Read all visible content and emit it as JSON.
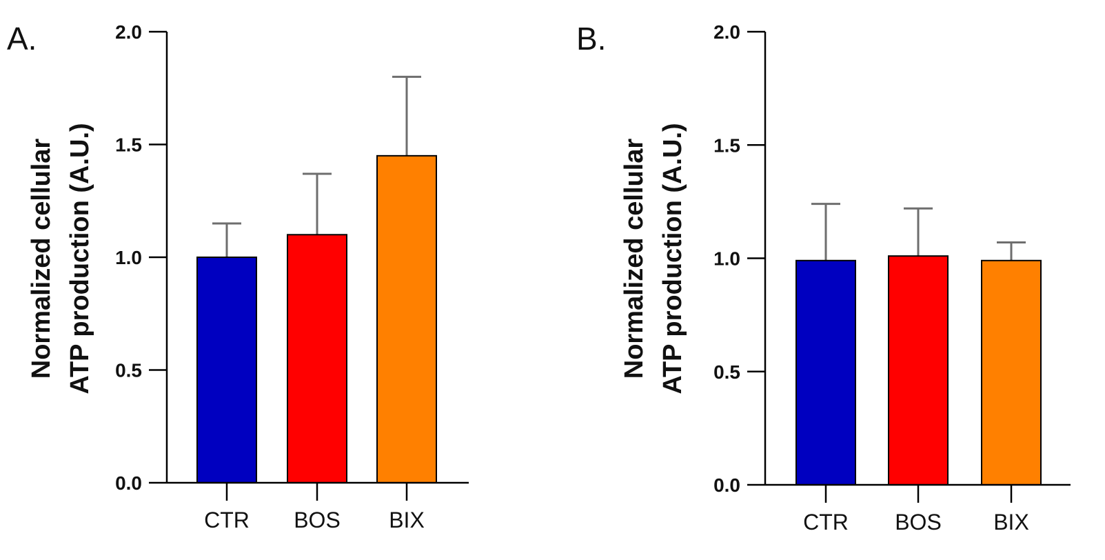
{
  "chart_data": [
    {
      "type": "bar",
      "panel_label": "A.",
      "categories": [
        "CTR",
        "BOS",
        "BIX"
      ],
      "values": [
        1.0,
        1.1,
        1.45
      ],
      "errors": [
        0.15,
        0.27,
        0.35
      ],
      "colors": [
        "#0000c0",
        "#ff0000",
        "#ff8000"
      ],
      "ylabel_line1": "Normalized cellular",
      "ylabel_line2": "ATP production  (A.U.)",
      "ylim": [
        0,
        2.0
      ],
      "yticks": [
        0.0,
        0.5,
        1.0,
        1.5,
        2.0
      ],
      "ytick_labels": [
        "0.0",
        "0.5",
        "1.0",
        "1.5",
        "2.0"
      ]
    },
    {
      "type": "bar",
      "panel_label": "B.",
      "categories": [
        "CTR",
        "BOS",
        "BIX"
      ],
      "values": [
        0.99,
        1.01,
        0.99
      ],
      "errors": [
        0.25,
        0.21,
        0.08
      ],
      "colors": [
        "#0000c0",
        "#ff0000",
        "#ff8000"
      ],
      "ylabel_line1": "Normalized cellular",
      "ylabel_line2": "ATP production  (A.U.)",
      "ylim": [
        0,
        2.0
      ],
      "yticks": [
        0.0,
        0.5,
        1.0,
        1.5,
        2.0
      ],
      "ytick_labels": [
        "0.0",
        "0.5",
        "1.0",
        "1.5",
        "2.0"
      ]
    }
  ]
}
